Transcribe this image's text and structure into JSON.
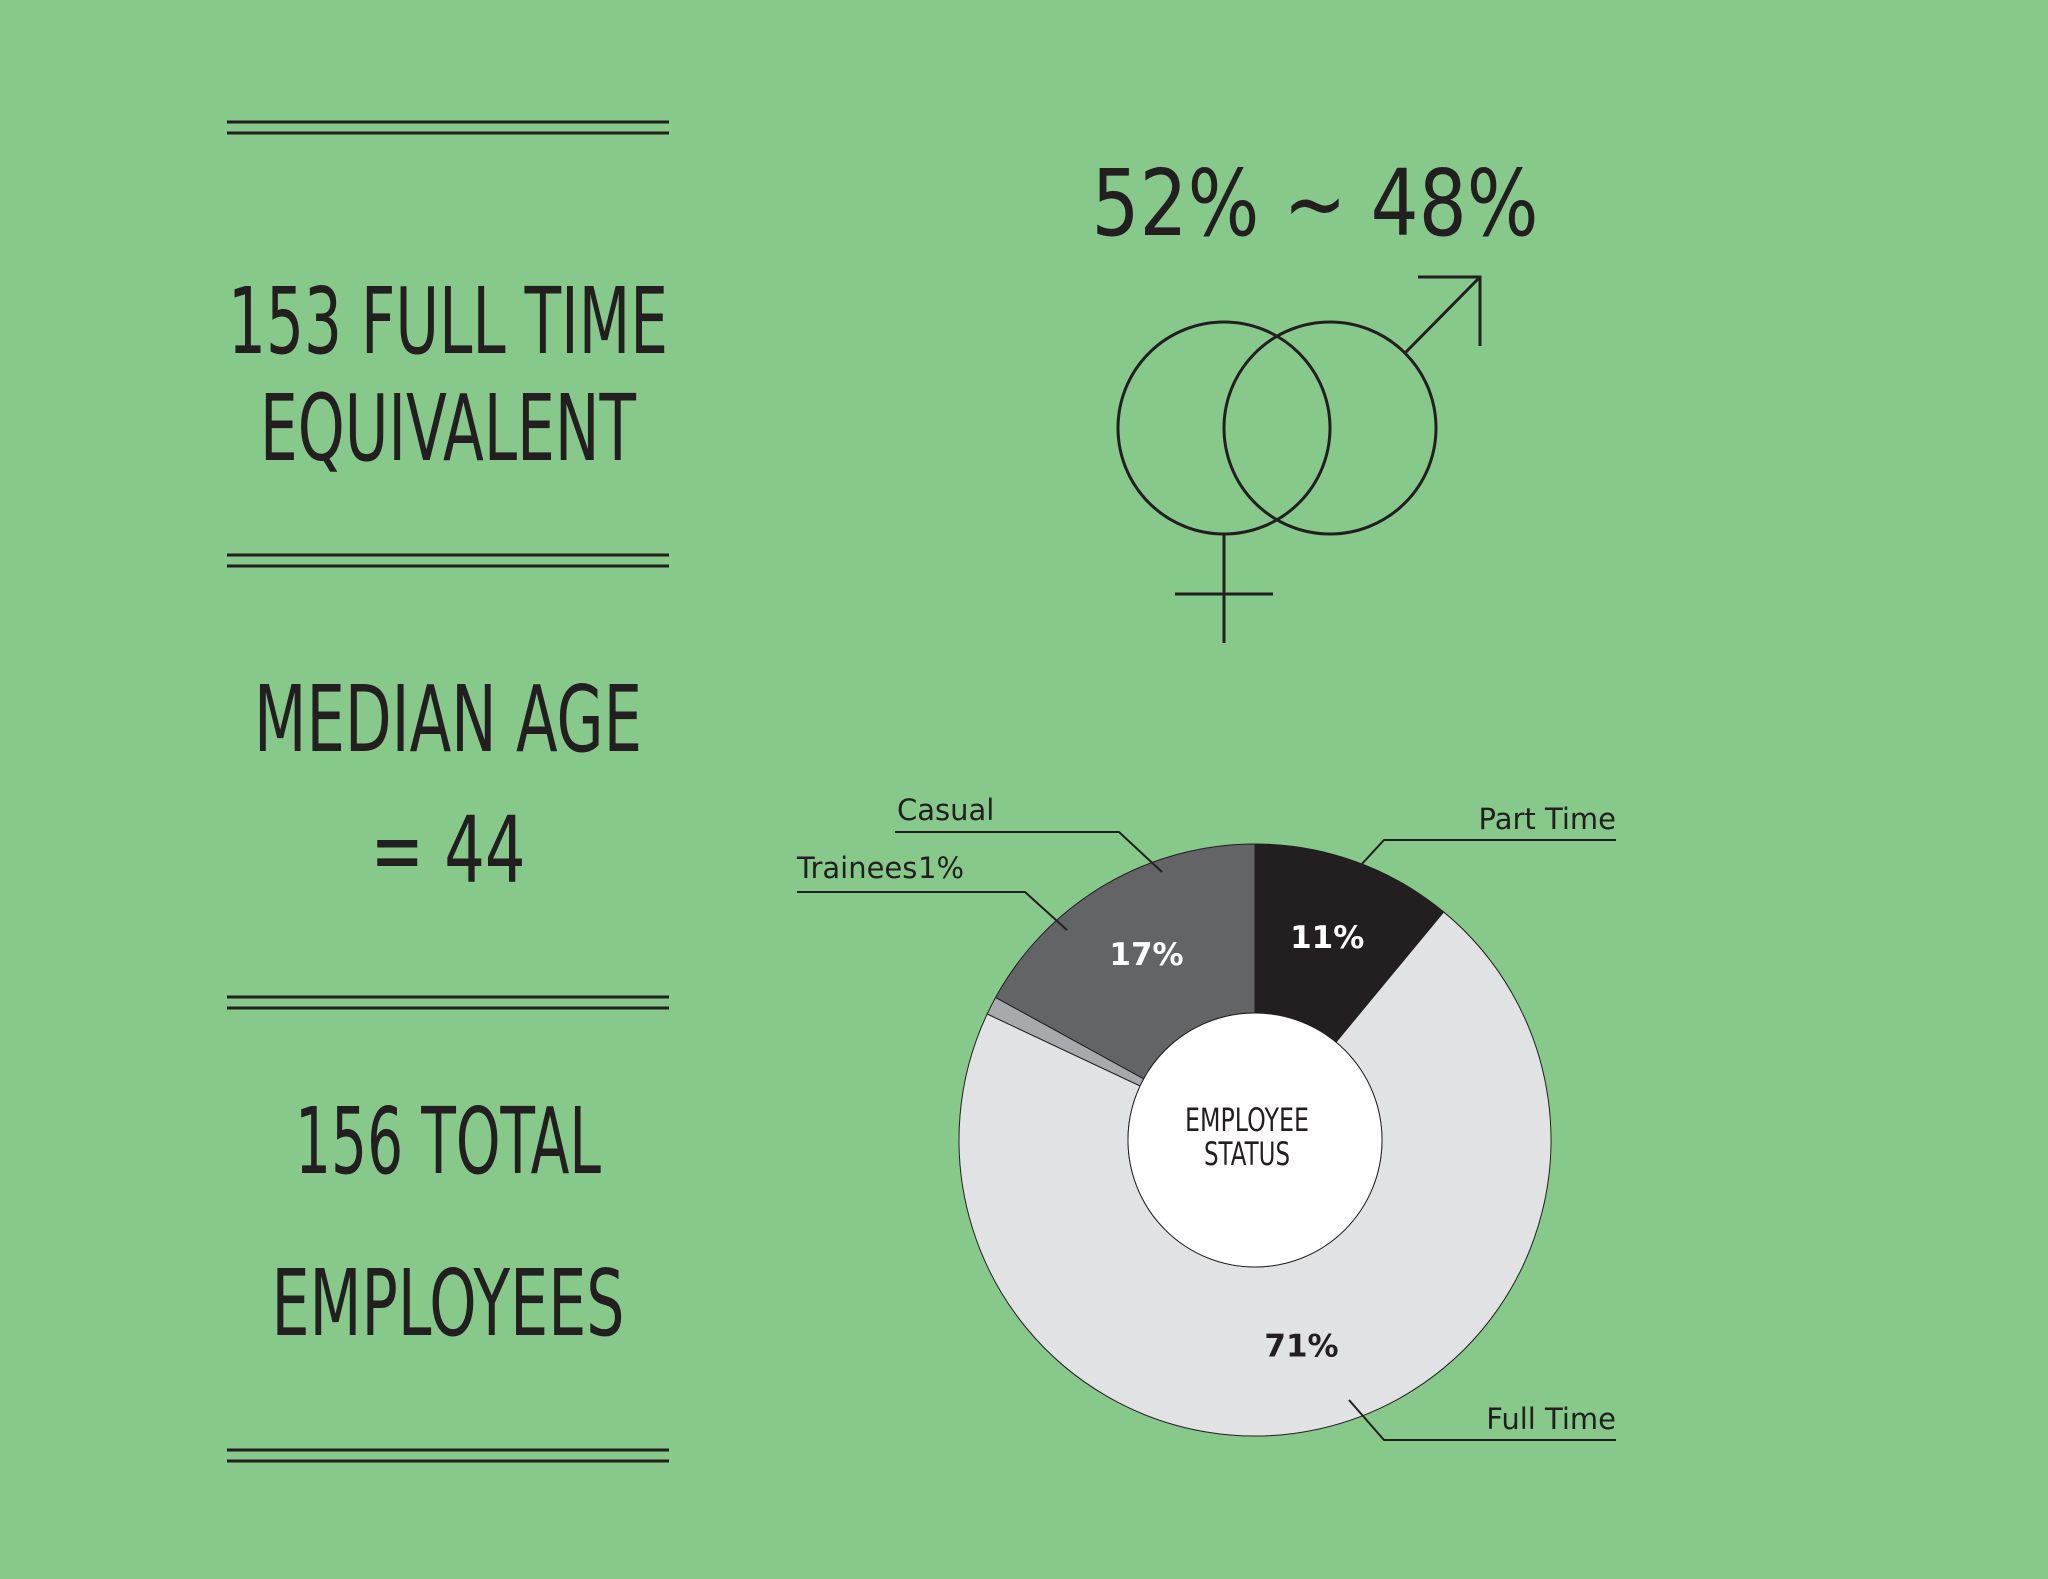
{
  "stats": [
    {
      "lines": [
        "153 FULL TIME",
        "EQUIVALENT"
      ]
    },
    {
      "lines": [
        "MEDIAN AGE",
        "= 44"
      ]
    },
    {
      "lines": [
        "156 TOTAL",
        "EMPLOYEES"
      ]
    }
  ],
  "gender_ratio": "52% ~ 48%",
  "chart_data": {
    "type": "pie",
    "donut": true,
    "categories": [
      "Part Time",
      "Full Time",
      "Trainees",
      "Casual"
    ],
    "values": [
      11,
      71,
      1,
      17
    ],
    "value_labels": [
      "11%",
      "71%",
      "1%",
      "17%"
    ],
    "colors": [
      "#231f20",
      "#e1e2e4",
      "#a7a9ac",
      "#636466"
    ],
    "center_label": [
      "EMPLOYEE",
      "STATUS"
    ]
  }
}
